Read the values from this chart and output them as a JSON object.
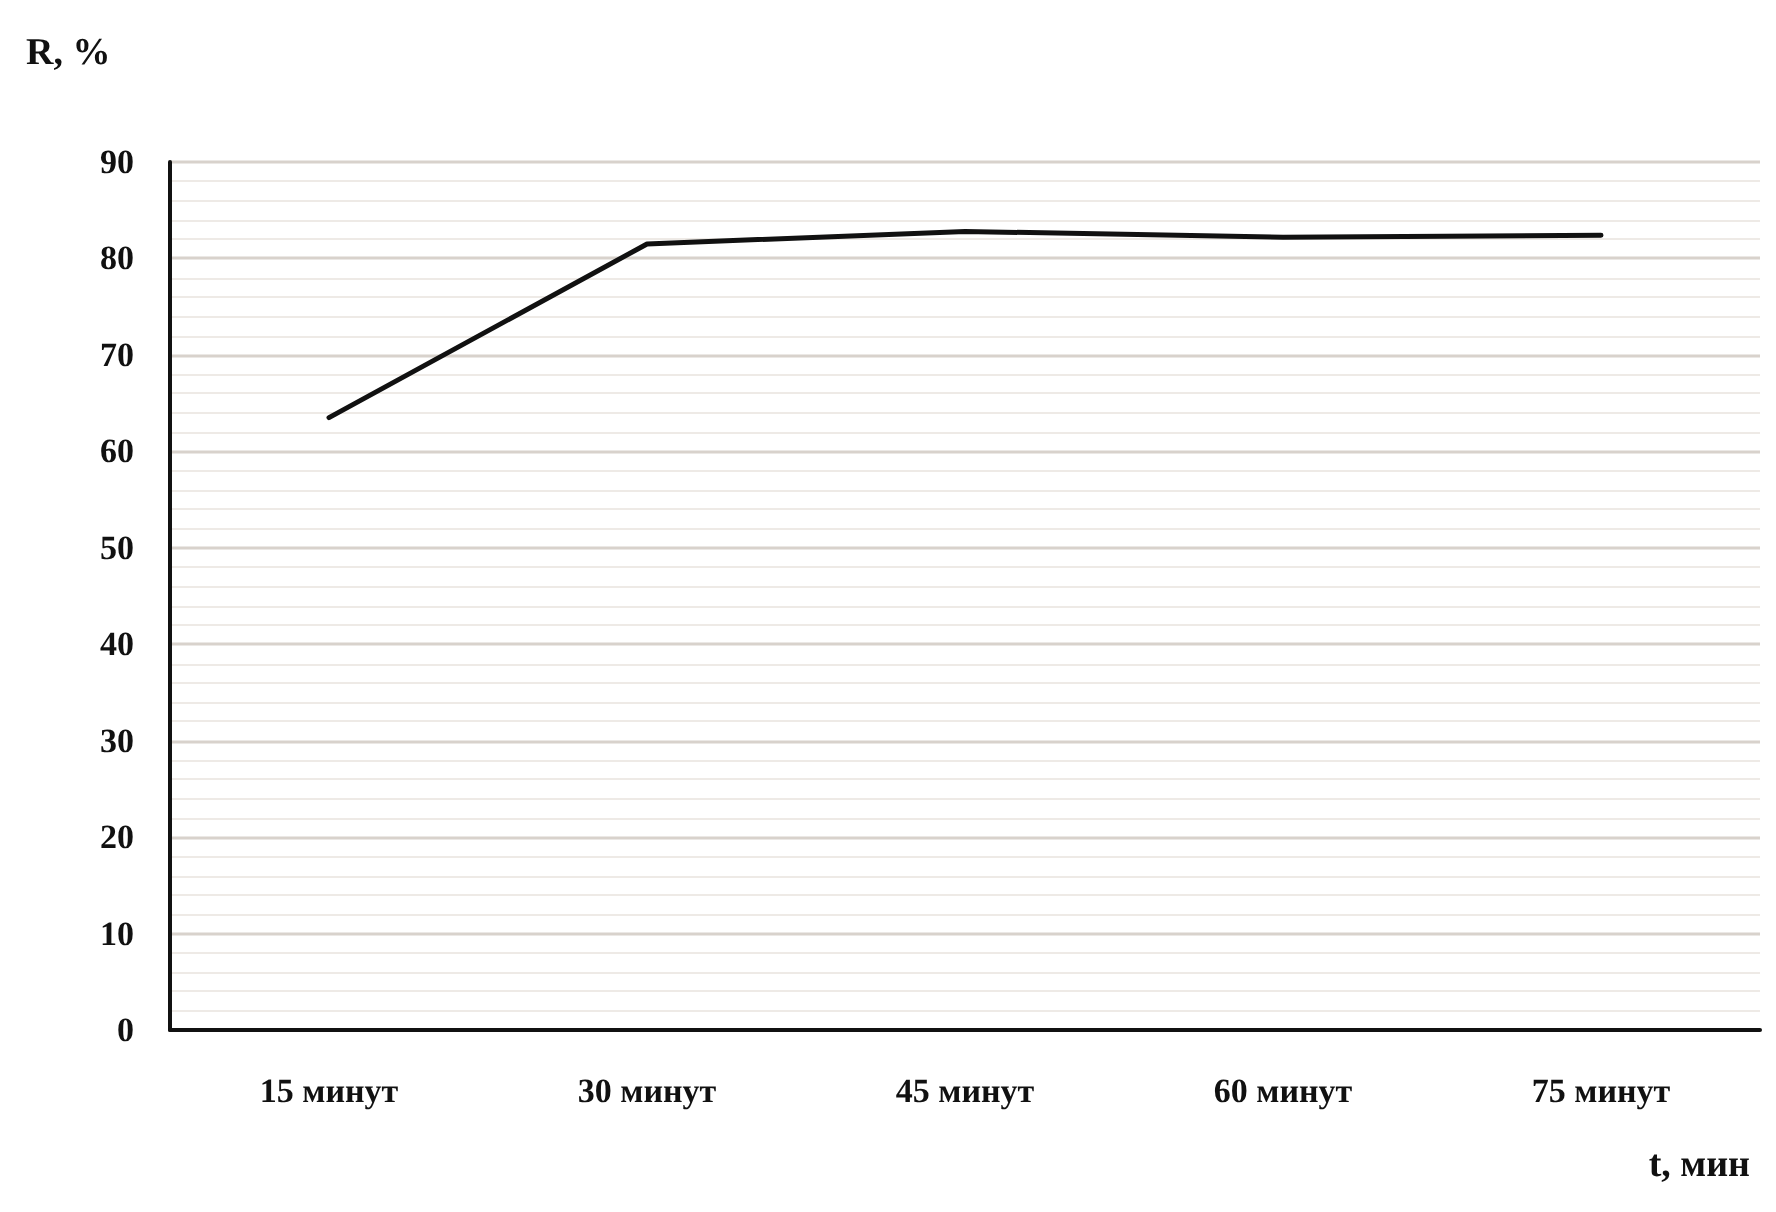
{
  "chart_data": {
    "type": "line",
    "ylabel": "R, %",
    "xlabel": "t, мин",
    "categories": [
      "15 минут",
      "30 минут",
      "45 минут",
      "60 минут",
      "75 минут"
    ],
    "series": [
      {
        "color": "#111111",
        "values": [
          63.5,
          81.5,
          82.8,
          82.2,
          82.4
        ]
      }
    ],
    "ylim": [
      0,
      90
    ],
    "yticks": [
      0,
      10,
      20,
      30,
      40,
      50,
      60,
      70,
      80,
      90
    ],
    "grid": "y",
    "marker": "none",
    "line_style": "solid"
  }
}
